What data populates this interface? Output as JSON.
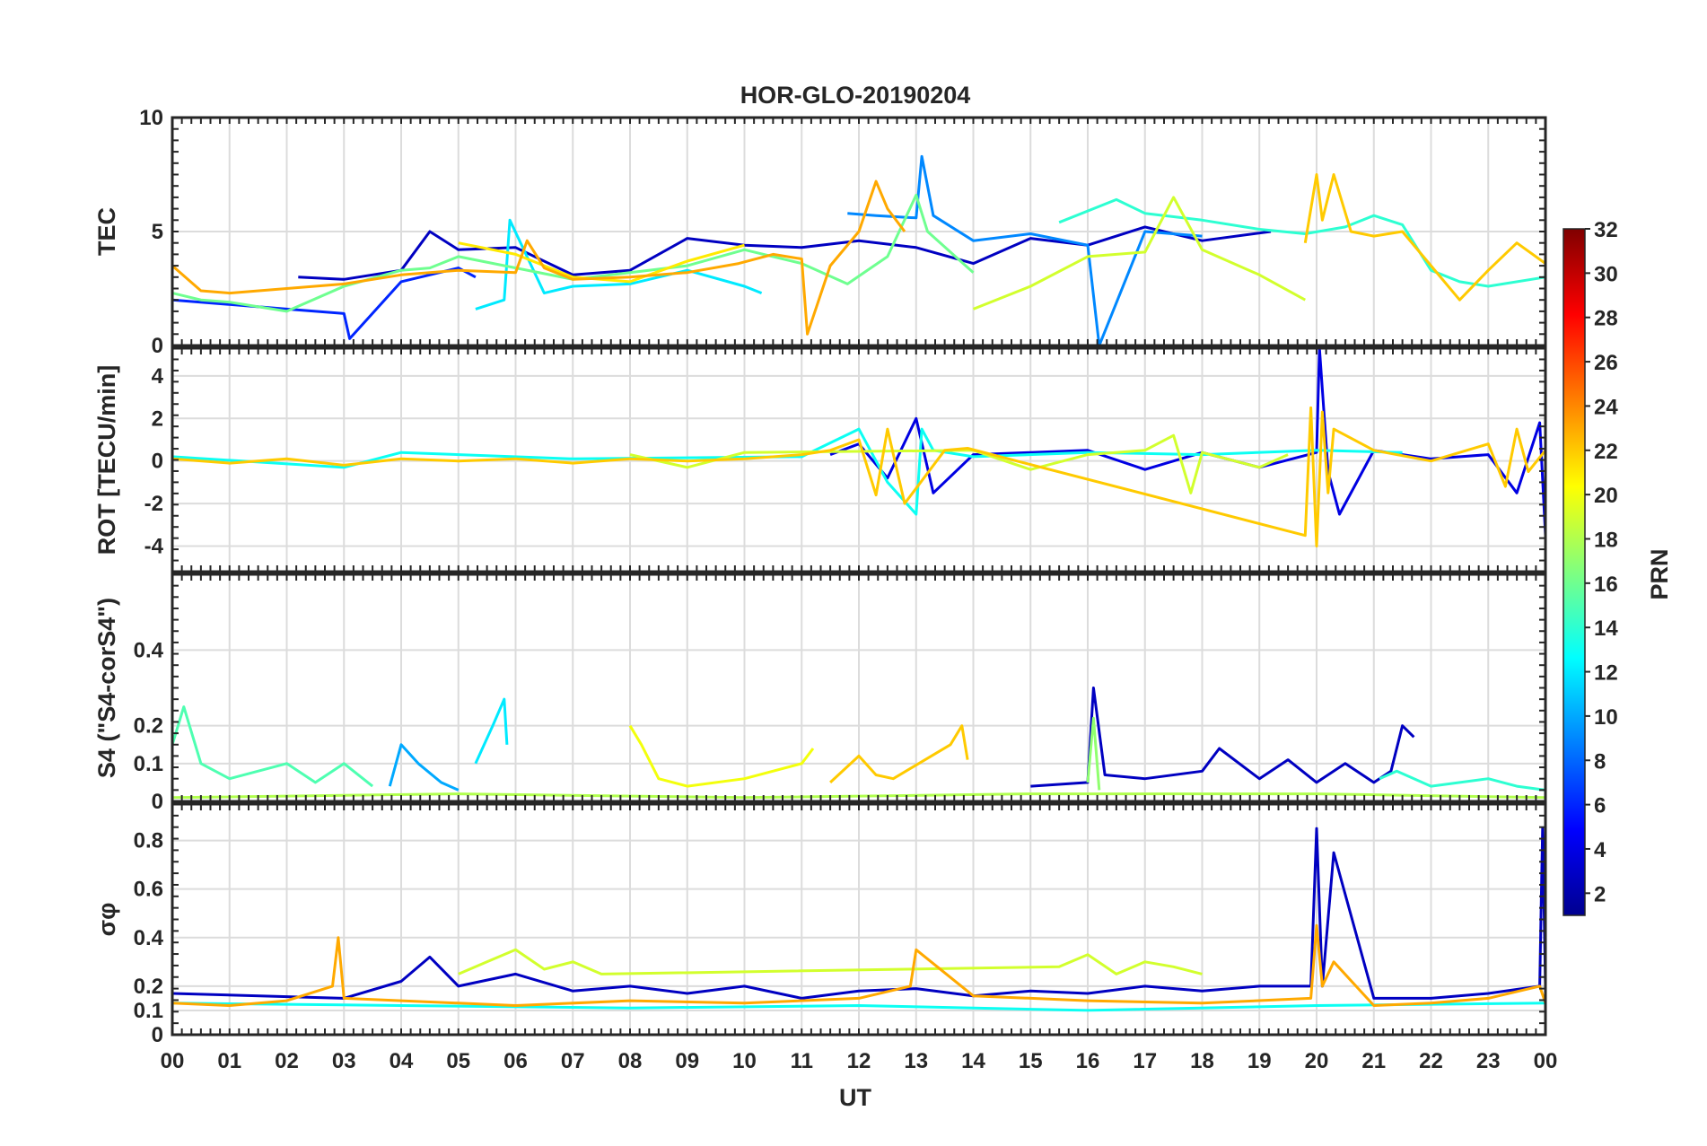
{
  "chart_data": {
    "type": "line",
    "title": "HOR-GLO-20190204",
    "xlabel": "UT",
    "x_ticks": [
      "00",
      "01",
      "02",
      "03",
      "04",
      "05",
      "06",
      "07",
      "08",
      "09",
      "10",
      "11",
      "12",
      "13",
      "14",
      "15",
      "16",
      "17",
      "18",
      "19",
      "20",
      "21",
      "22",
      "23",
      "00"
    ],
    "xlim": [
      0,
      24
    ],
    "colorbar": {
      "label": "PRN",
      "range": [
        1,
        32
      ],
      "ticks": [
        "2",
        "4",
        "6",
        "8",
        "10",
        "12",
        "14",
        "16",
        "18",
        "20",
        "22",
        "24",
        "26",
        "28",
        "30",
        "32"
      ],
      "colormap": "jet"
    },
    "panels": [
      {
        "name": "tec",
        "ylabel": "TEC",
        "ylim": [
          0,
          10
        ],
        "yticks": [
          "0",
          "5",
          "10"
        ],
        "series": [
          {
            "prn": 3,
            "x": [
              2.2,
              3,
              4,
              4.5,
              5,
              6,
              7,
              8,
              9,
              10,
              11,
              12,
              13,
              14,
              15,
              16,
              17,
              18,
              19.2
            ],
            "y": [
              3,
              2.9,
              3.3,
              5,
              4.2,
              4.3,
              3.1,
              3.3,
              4.7,
              4.4,
              4.3,
              4.6,
              4.3,
              3.6,
              4.7,
              4.4,
              5.2,
              4.6,
              5
            ]
          },
          {
            "prn": 6,
            "x": [
              0,
              1,
              2,
              3,
              3.1,
              4,
              5,
              5.3
            ],
            "y": [
              2,
              1.8,
              1.6,
              1.4,
              0.3,
              2.8,
              3.4,
              3
            ]
          },
          {
            "prn": 9,
            "x": [
              11.8,
              12.3,
              13,
              13.1,
              13.3,
              14,
              15,
              16,
              16.2,
              17,
              18
            ],
            "y": [
              5.8,
              5.7,
              5.6,
              8.3,
              5.7,
              4.6,
              4.9,
              4.4,
              0,
              5,
              4.8
            ]
          },
          {
            "prn": 12,
            "x": [
              5.3,
              5.8,
              5.9,
              6.5,
              7,
              8,
              9,
              10,
              10.3
            ],
            "y": [
              1.6,
              2,
              5.5,
              2.3,
              2.6,
              2.7,
              3.3,
              2.6,
              2.3
            ]
          },
          {
            "prn": 14,
            "x": [
              15.5,
              16.5,
              17,
              18,
              19,
              19.8,
              20.5,
              21,
              21.5,
              22,
              22.5,
              23,
              24
            ],
            "y": [
              5.4,
              6.4,
              5.8,
              5.5,
              5.1,
              4.9,
              5.2,
              5.7,
              5.3,
              3.3,
              2.8,
              2.6,
              3
            ]
          },
          {
            "prn": 16,
            "x": [
              0,
              0.5,
              1,
              2,
              3,
              4,
              4.5,
              5,
              7,
              8,
              9,
              10,
              11,
              11.8,
              12.5,
              13,
              13.2,
              14
            ],
            "y": [
              2.3,
              2,
              1.9,
              1.5,
              2.6,
              3.3,
              3.4,
              3.9,
              2.9,
              3.2,
              3.5,
              4.2,
              3.6,
              2.7,
              3.9,
              6.6,
              5,
              3.2
            ]
          },
          {
            "prn": 19,
            "x": [
              14,
              15,
              16,
              17,
              17.5,
              18,
              19,
              19.8
            ],
            "y": [
              1.6,
              2.6,
              3.9,
              4.1,
              6.5,
              4.2,
              3.1,
              2
            ]
          },
          {
            "prn": 21,
            "x": [
              5,
              6,
              7,
              8,
              9,
              10
            ],
            "y": [
              4.5,
              4,
              3,
              2.8,
              3.7,
              4.4
            ]
          },
          {
            "prn": 23,
            "x": [
              0,
              0.5,
              1,
              2,
              3,
              4,
              5,
              6,
              6.2,
              6.5,
              7,
              8,
              9,
              9.9,
              10.5,
              11,
              11.1,
              11.5,
              12,
              12.3,
              12.5,
              12.8
            ],
            "y": [
              3.5,
              2.4,
              2.3,
              2.5,
              2.7,
              3.1,
              3.3,
              3.2,
              4.6,
              3.4,
              2.9,
              3,
              3.2,
              3.6,
              4,
              3.8,
              0.5,
              3.5,
              5,
              7.2,
              6,
              5
            ]
          },
          {
            "prn": 22,
            "x": [
              19.8,
              20,
              20.1,
              20.3,
              20.6,
              21,
              21.5,
              22,
              22.5,
              23,
              23.5,
              24
            ],
            "y": [
              4.5,
              7.5,
              5.5,
              7.5,
              5,
              4.8,
              5,
              3.5,
              2,
              3.3,
              4.5,
              3.6
            ]
          }
        ]
      },
      {
        "name": "rot",
        "ylabel": "ROT [TECU/min]",
        "ylim": [
          -5.2,
          5.3
        ],
        "yticks": [
          "-4",
          "-2",
          "0",
          "2",
          "4"
        ],
        "series": [
          {
            "prn": 4,
            "x": [
              11.5,
              12,
              12.5,
              13,
              13.3,
              14,
              15,
              16,
              17,
              18,
              19,
              20,
              20.05,
              20.2,
              20.4,
              21,
              22,
              23,
              23.5,
              23.9,
              24
            ],
            "y": [
              0.3,
              0.8,
              -0.8,
              2,
              -1.5,
              0.3,
              0.4,
              0.5,
              -0.4,
              0.4,
              -0.3,
              0.4,
              5.3,
              -0.5,
              -2.5,
              0.5,
              0.1,
              0.3,
              -1.5,
              1.8,
              -3.5
            ]
          },
          {
            "prn": 13,
            "x": [
              0,
              3,
              4,
              7,
              11,
              12,
              12.5,
              13,
              13.1,
              13.3,
              14,
              16,
              18,
              20,
              21.5
            ],
            "y": [
              0.2,
              -0.3,
              0.4,
              0.1,
              0.2,
              1.5,
              -1,
              -2.5,
              1.5,
              0.5,
              0.2,
              0.4,
              0.3,
              0.5,
              0.4
            ]
          },
          {
            "prn": 19,
            "x": [
              8,
              9,
              10,
              14,
              15,
              16,
              17,
              17.5,
              17.8,
              18,
              19,
              19.5
            ],
            "y": [
              0.3,
              -0.3,
              0.4,
              0.5,
              -0.4,
              0.3,
              0.5,
              1.2,
              -1.5,
              0.4,
              -0.3,
              0.3
            ]
          },
          {
            "prn": 22,
            "x": [
              0,
              1,
              2,
              3,
              4,
              5,
              6,
              7,
              8,
              9,
              10,
              11,
              11.5,
              12,
              12.3,
              12.5,
              12.8,
              13.5,
              13.9,
              19.8,
              19.9,
              20,
              20.1,
              20.2,
              20.3,
              21,
              22,
              23,
              23.3,
              23.5,
              23.7,
              24
            ],
            "y": [
              0.1,
              -0.1,
              0.1,
              -0.2,
              0.1,
              0,
              0.1,
              -0.1,
              0.1,
              0,
              0.1,
              0.3,
              0.5,
              1,
              -1.6,
              1.5,
              -2,
              0.5,
              0.6,
              -3.5,
              2.5,
              -4,
              2.3,
              -1.5,
              1.5,
              0.5,
              0,
              0.8,
              -1.2,
              1.5,
              -0.5,
              0.5
            ]
          }
        ]
      },
      {
        "name": "s4",
        "ylabel": "S4 (\"S4-corS4\")",
        "ylim": [
          0,
          0.6
        ],
        "yticks": [
          "0",
          "0.1",
          "0.2",
          "0.4"
        ],
        "series": [
          {
            "prn": 15,
            "x": [
              0,
              0.2,
              0.5,
              1,
              2,
              2.5,
              3,
              3.5
            ],
            "y": [
              0.15,
              0.25,
              0.1,
              0.06,
              0.1,
              0.05,
              0.1,
              0.04
            ]
          },
          {
            "prn": 10,
            "x": [
              3.8,
              4,
              4.3,
              4.7,
              5
            ],
            "y": [
              0.04,
              0.15,
              0.1,
              0.05,
              0.03
            ]
          },
          {
            "prn": 12,
            "x": [
              5.3,
              5.6,
              5.8,
              5.85
            ],
            "y": [
              0.1,
              0.2,
              0.27,
              0.15
            ]
          },
          {
            "prn": 20,
            "x": [
              8,
              8.2,
              8.5,
              9,
              10,
              11,
              11.2
            ],
            "y": [
              0.2,
              0.15,
              0.06,
              0.04,
              0.06,
              0.1,
              0.14
            ]
          },
          {
            "prn": 22,
            "x": [
              11.5,
              12,
              12.3,
              12.6,
              13.6,
              13.8,
              13.9
            ],
            "y": [
              0.05,
              0.12,
              0.07,
              0.06,
              0.15,
              0.2,
              0.11
            ]
          },
          {
            "prn": 3,
            "x": [
              15,
              16,
              16.1,
              16.3,
              17,
              18,
              18.3,
              19,
              19.5,
              20,
              20.5,
              21,
              21.3,
              21.5,
              21.7
            ],
            "y": [
              0.04,
              0.05,
              0.3,
              0.07,
              0.06,
              0.08,
              0.14,
              0.06,
              0.11,
              0.05,
              0.1,
              0.05,
              0.08,
              0.2,
              0.17
            ]
          },
          {
            "prn": 17,
            "x": [
              16,
              16.1,
              16.2
            ],
            "y": [
              0.05,
              0.22,
              0.03
            ]
          },
          {
            "prn": 14,
            "x": [
              21.1,
              21.4,
              22,
              23,
              23.5,
              24
            ],
            "y": [
              0.06,
              0.08,
              0.04,
              0.06,
              0.04,
              0.03
            ]
          },
          {
            "prn": 18,
            "x": [
              0,
              5,
              10,
              15,
              20,
              24
            ],
            "y": [
              0.01,
              0.02,
              0.01,
              0.02,
              0.02,
              0.01
            ]
          }
        ]
      },
      {
        "name": "sigma",
        "ylabel": "σφ",
        "ylim": [
          0,
          0.95
        ],
        "yticks": [
          "0",
          "0.1",
          "0.2",
          "0.4",
          "0.6",
          "0.8"
        ],
        "series": [
          {
            "prn": 3,
            "x": [
              0,
              3,
              4,
              4.5,
              5,
              6,
              7,
              8,
              9,
              10,
              11,
              12,
              13,
              14,
              15,
              16,
              17,
              18,
              19,
              19.9,
              20,
              20.1,
              20.3,
              21,
              22,
              23,
              23.9,
              23.95,
              24
            ],
            "y": [
              0.17,
              0.15,
              0.22,
              0.32,
              0.2,
              0.25,
              0.18,
              0.2,
              0.17,
              0.2,
              0.15,
              0.18,
              0.19,
              0.16,
              0.18,
              0.17,
              0.2,
              0.18,
              0.2,
              0.2,
              0.85,
              0.2,
              0.75,
              0.15,
              0.15,
              0.17,
              0.2,
              0.85,
              0.2
            ]
          },
          {
            "prn": 19,
            "x": [
              5,
              5.5,
              6,
              6.5,
              7,
              7.5,
              15.5,
              16,
              16.5,
              17,
              17.5,
              18
            ],
            "y": [
              0.25,
              0.3,
              0.35,
              0.27,
              0.3,
              0.25,
              0.28,
              0.33,
              0.25,
              0.3,
              0.28,
              0.25
            ]
          },
          {
            "prn": 13,
            "x": [
              0,
              4,
              8,
              12,
              16,
              20,
              24
            ],
            "y": [
              0.13,
              0.12,
              0.11,
              0.12,
              0.1,
              0.12,
              0.13
            ]
          },
          {
            "prn": 23,
            "x": [
              0,
              1,
              2,
              2.8,
              2.9,
              3,
              4,
              6,
              8,
              10,
              12,
              12.9,
              13,
              14,
              16,
              18,
              19.9,
              20,
              20.1,
              20.3,
              21,
              22,
              23,
              23.9,
              24
            ],
            "y": [
              0.13,
              0.12,
              0.14,
              0.2,
              0.4,
              0.15,
              0.14,
              0.12,
              0.14,
              0.13,
              0.15,
              0.2,
              0.35,
              0.16,
              0.14,
              0.13,
              0.15,
              0.45,
              0.2,
              0.3,
              0.12,
              0.13,
              0.15,
              0.2,
              0.13
            ]
          }
        ]
      }
    ]
  }
}
